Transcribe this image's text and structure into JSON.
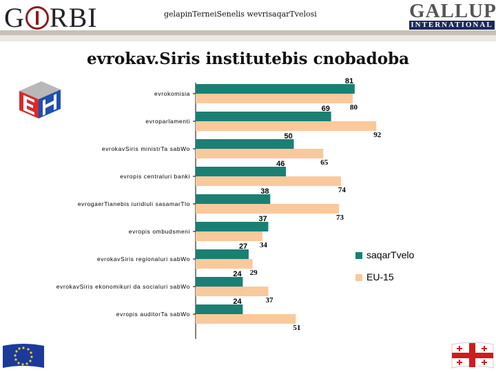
{
  "header": {
    "left_logo": "GORBI",
    "title": "gelapinTerneiSenelis wevrisaqarTvelosi",
    "right_logo_top": "GALLUP",
    "right_logo_bottom": "INTERNATIONAL"
  },
  "colors": {
    "series1": "#1a8074",
    "series2": "#f9c99b",
    "stripe_dark": "#c8c0b4",
    "stripe_light": "#ece7df",
    "gallup_navy": "#1c2a5a"
  },
  "icons": [
    "eh-logo-icon",
    "eu-flag-icon",
    "georgia-flag-icon"
  ],
  "chart_data": {
    "type": "bar",
    "orientation": "horizontal",
    "title": "evrokav.Siris institutebis cnobadoba",
    "categories": [
      "evrokomisia",
      "evroparlamenti",
      "evrokavSiris ministrTa sabWo",
      "evropis centraluri banki",
      "evrogaerTianebis iuridiuli sasamarTlo",
      "evropis ombudsmeni",
      "evrokavSiris regionaluri sabWo",
      "evrokavSiris ekonomikuri da socialuri sabWo",
      "evropis auditorTa sabWo"
    ],
    "series": [
      {
        "name": "saqarTvelo",
        "values": [
          81,
          69,
          50,
          46,
          38,
          37,
          27,
          24,
          24
        ]
      },
      {
        "name": "EU-15",
        "values": [
          80,
          92,
          65,
          74,
          73,
          34,
          29,
          37,
          51
        ]
      }
    ],
    "xlim": [
      0,
      100
    ],
    "grid": false,
    "legend_position": "right"
  }
}
